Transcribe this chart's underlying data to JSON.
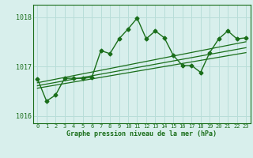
{
  "x": [
    0,
    1,
    2,
    3,
    4,
    5,
    6,
    7,
    8,
    9,
    10,
    11,
    12,
    13,
    14,
    15,
    16,
    17,
    18,
    19,
    20,
    21,
    22,
    23
  ],
  "y_main": [
    1016.75,
    1016.3,
    1016.42,
    1016.76,
    1016.76,
    1016.76,
    1016.78,
    1017.32,
    1017.26,
    1017.56,
    1017.76,
    1017.98,
    1017.56,
    1017.72,
    1017.58,
    1017.22,
    1017.02,
    1017.02,
    1016.88,
    1017.28,
    1017.56,
    1017.72,
    1017.56,
    1017.58
  ],
  "trend_lines": [
    [
      1016.56,
      1017.28
    ],
    [
      1016.61,
      1017.38
    ],
    [
      1016.67,
      1017.5
    ]
  ],
  "ylim": [
    1015.85,
    1018.25
  ],
  "yticks": [
    1016,
    1017,
    1018
  ],
  "xticks": [
    0,
    1,
    2,
    3,
    4,
    5,
    6,
    7,
    8,
    9,
    10,
    11,
    12,
    13,
    14,
    15,
    16,
    17,
    18,
    19,
    20,
    21,
    22,
    23
  ],
  "xlabel": "Graphe pression niveau de la mer (hPa)",
  "bg_color": "#d8efec",
  "line_color": "#1a6e1a",
  "grid_color": "#b8ddd8",
  "text_color": "#1a6e1a",
  "marker": "D",
  "marker_size": 2.5,
  "line_width": 1.0,
  "fig_width": 3.2,
  "fig_height": 2.0,
  "dpi": 100
}
